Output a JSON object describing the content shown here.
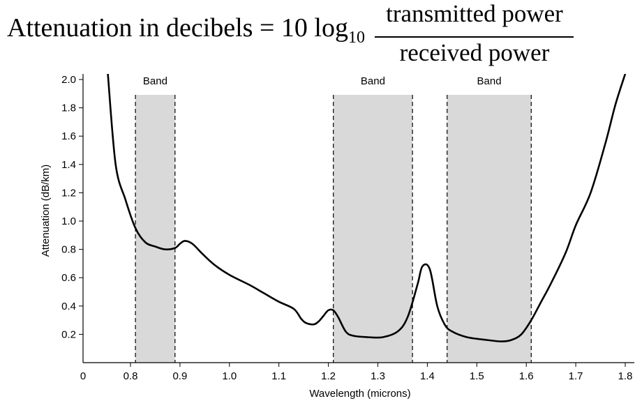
{
  "formula": {
    "lhs": "Attenuation in decibels = 10 log",
    "subscript": "10",
    "numerator": "transmitted power",
    "denominator": "received power"
  },
  "chart_data": {
    "type": "line",
    "xlabel": "Wavelength (microns)",
    "ylabel": "Attenuation (dB/km)",
    "xlim": [
      0.8,
      1.8
    ],
    "ylim": [
      0.0,
      2.0
    ],
    "x_ticks": [
      0.8,
      0.9,
      1.0,
      1.1,
      1.2,
      1.3,
      1.4,
      1.5,
      1.6,
      1.7,
      1.8
    ],
    "x_tick_labels": [
      "0.8",
      "0.9",
      "1.0",
      "1.1",
      "1.2",
      "1.3",
      "1.4",
      "1.5",
      "1.6",
      "1.7",
      "1.8"
    ],
    "x_origin_label": "0",
    "y_ticks": [
      0.2,
      0.4,
      0.6,
      0.8,
      1.0,
      1.2,
      1.4,
      1.6,
      1.8,
      2.0
    ],
    "y_tick_labels": [
      "0.2",
      "0.4",
      "0.6",
      "0.8",
      "1.0",
      "1.2",
      "1.4",
      "1.6",
      "1.8",
      "2.0"
    ],
    "grid": false,
    "bands": [
      {
        "label": "Band",
        "x_start": 0.81,
        "x_end": 0.89
      },
      {
        "label": "Band",
        "x_start": 1.21,
        "x_end": 1.37
      },
      {
        "label": "Band",
        "x_start": 1.44,
        "x_end": 1.61
      }
    ],
    "series": [
      {
        "x": [
          0.754,
          0.77,
          0.79,
          0.81,
          0.83,
          0.85,
          0.87,
          0.89,
          0.9,
          0.91,
          0.925,
          0.945,
          0.97,
          1.0,
          1.04,
          1.07,
          1.1,
          1.13,
          1.145,
          1.155,
          1.17,
          1.18,
          1.19,
          1.2,
          1.21,
          1.22,
          1.235,
          1.25,
          1.28,
          1.31,
          1.34,
          1.36,
          1.38,
          1.39,
          1.405,
          1.42,
          1.435,
          1.45,
          1.48,
          1.52,
          1.55,
          1.57,
          1.59,
          1.61,
          1.63,
          1.65,
          1.68,
          1.7,
          1.73,
          1.76,
          1.78,
          1.8
        ],
        "y": [
          2.05,
          1.4,
          1.15,
          0.95,
          0.85,
          0.82,
          0.8,
          0.81,
          0.84,
          0.86,
          0.84,
          0.77,
          0.69,
          0.62,
          0.55,
          0.49,
          0.43,
          0.38,
          0.31,
          0.28,
          0.27,
          0.29,
          0.33,
          0.37,
          0.37,
          0.32,
          0.22,
          0.19,
          0.18,
          0.18,
          0.22,
          0.32,
          0.55,
          0.68,
          0.66,
          0.4,
          0.27,
          0.22,
          0.18,
          0.16,
          0.15,
          0.16,
          0.2,
          0.3,
          0.43,
          0.56,
          0.78,
          0.97,
          1.2,
          1.55,
          1.82,
          2.04
        ]
      }
    ]
  }
}
